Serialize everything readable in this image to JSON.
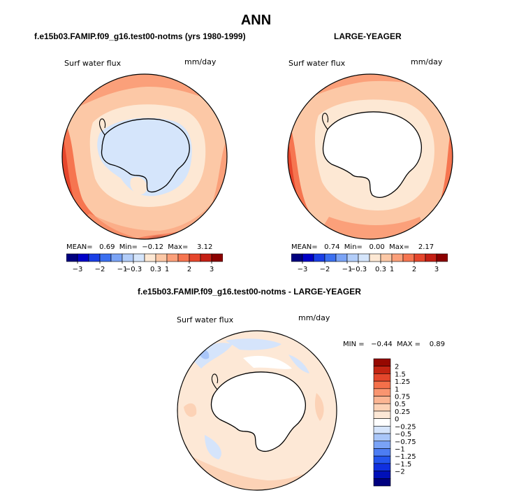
{
  "page": {
    "title": "ANN"
  },
  "colors": {
    "neg_scale": [
      "#00007f",
      "#0000c8",
      "#1a3fe6",
      "#3b6ff0",
      "#7aa3f5",
      "#b2cdf9",
      "#d5e5fb"
    ],
    "pos_scale": [
      "#fde8d4",
      "#fcc8a6",
      "#fba07a",
      "#f67550",
      "#e6462c",
      "#c51f14",
      "#8b0000"
    ],
    "diff_scale": [
      "#00007f",
      "#0010b8",
      "#1030e0",
      "#2455ee",
      "#4d7df3",
      "#7aa3f6",
      "#a9c6f9",
      "#d5e4fb",
      "#ffffff",
      "#fde8d6",
      "#fcd2b6",
      "#fbb593",
      "#f99570",
      "#f4704a",
      "#e4472c",
      "#c32412",
      "#960800"
    ],
    "land": "#ffffff"
  },
  "panels": {
    "left": {
      "title": "f.e15b03.FAMIP.f09_g16.test00-notms (yrs 1980-1999)",
      "variable": "Surf water flux",
      "units": "mm/day",
      "stats": "MEAN=   0.69  Min=  −0.12  Max=    3.12",
      "colorbar_labels": [
        "−3",
        "−2",
        "−1",
        "−0.3",
        "0.3",
        "1",
        "2",
        "3"
      ]
    },
    "right": {
      "title": "LARGE-YEAGER",
      "variable": "Surf water flux",
      "units": "mm/day",
      "stats": "MEAN=   0.74  Min=   0.00  Max=    2.17",
      "colorbar_labels": [
        "−3",
        "−2",
        "−1",
        "−0.3",
        "0.3",
        "1",
        "2",
        "3"
      ]
    },
    "diff": {
      "title": "f.e15b03.FAMIP.f09_g16.test00-notms - LARGE-YEAGER",
      "variable": "Surf water flux",
      "units": "mm/day",
      "stats": "MIN =   −0.44  MAX =    0.89",
      "colorbar_labels": [
        "2",
        "1.5",
        "1.25",
        "1",
        "0.75",
        "0.5",
        "0.25",
        "0",
        "−0.25",
        "−0.5",
        "−0.75",
        "−1",
        "−1.25",
        "−1.5",
        "−2"
      ]
    }
  }
}
